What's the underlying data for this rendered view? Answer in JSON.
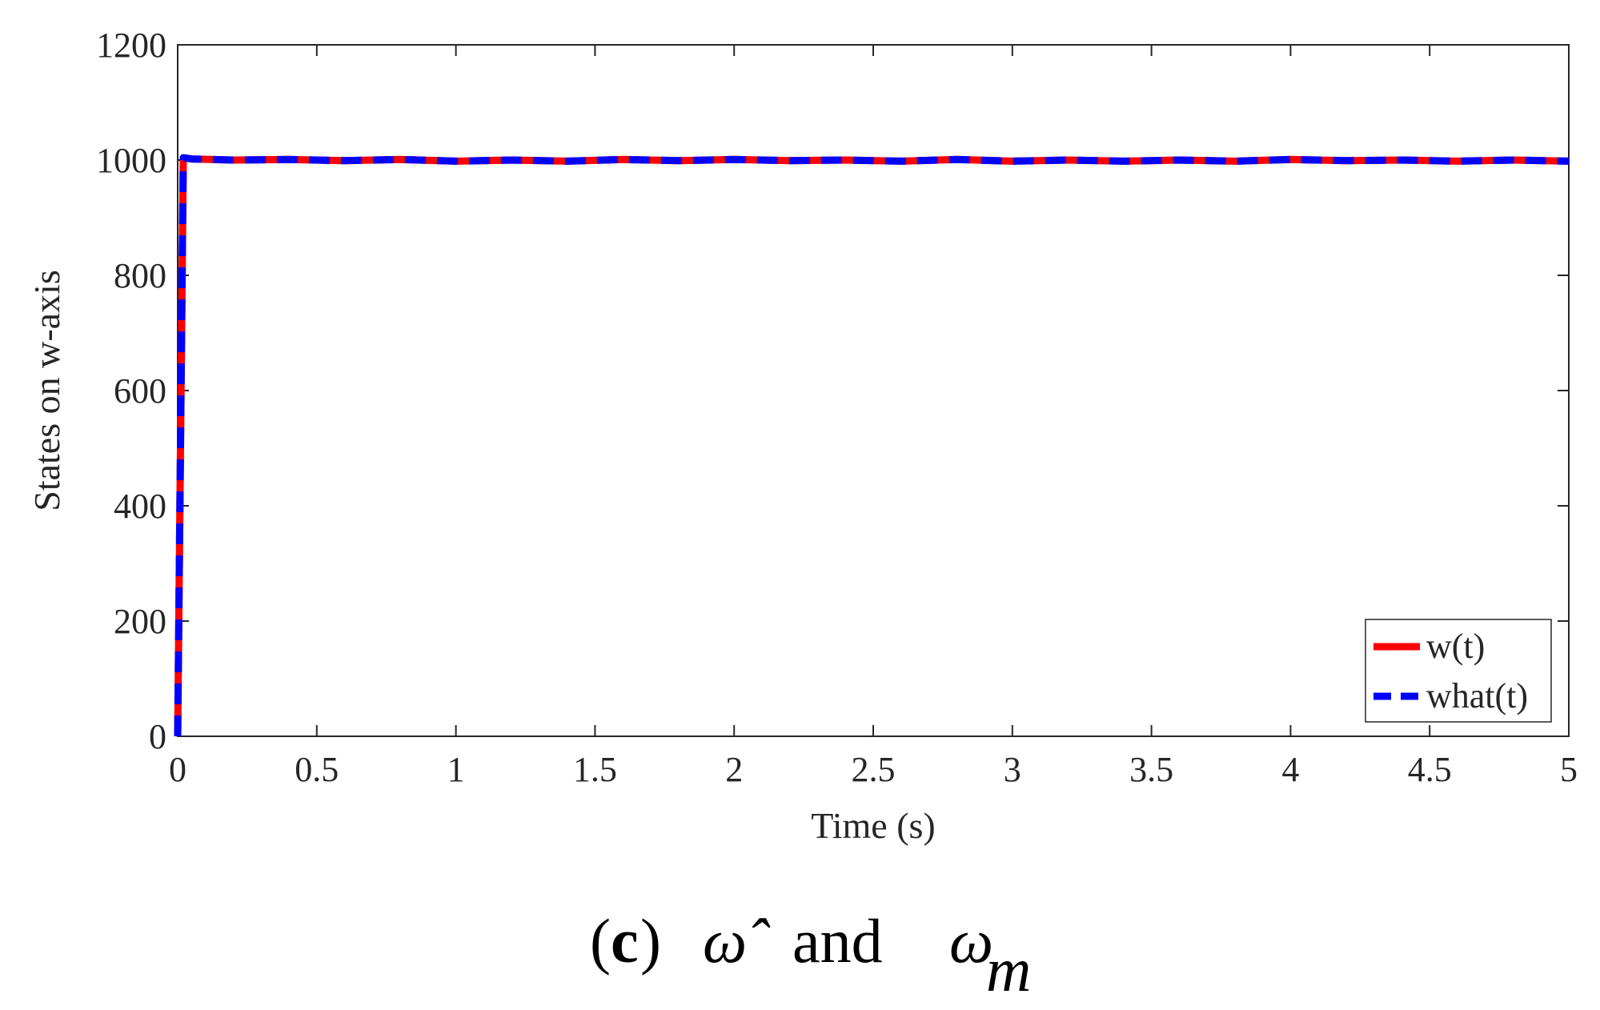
{
  "chart_data": {
    "type": "line",
    "xlabel": "Time (s)",
    "ylabel": "States on w-axis",
    "xlim": [
      0,
      5
    ],
    "ylim": [
      0,
      1200
    ],
    "xticks": [
      "0",
      "0.5",
      "1",
      "1.5",
      "2",
      "2.5",
      "3",
      "3.5",
      "4",
      "4.5",
      "5"
    ],
    "yticks": [
      "0",
      "200",
      "400",
      "600",
      "800",
      "1000",
      "1200"
    ],
    "grid": false,
    "legend_position": "bottom-right",
    "series": [
      {
        "name": "w(t)",
        "color": "#ff0000",
        "style": "solid",
        "x": [
          0,
          0.02,
          0.05,
          0.2,
          0.4,
          0.6,
          0.8,
          1.0,
          1.2,
          1.4,
          1.6,
          1.8,
          2.0,
          2.2,
          2.4,
          2.6,
          2.8,
          3.0,
          3.2,
          3.4,
          3.6,
          3.8,
          4.0,
          4.2,
          4.4,
          4.6,
          4.8,
          5.0
        ],
        "y": [
          0,
          1004,
          1002,
          1000,
          1001,
          999,
          1001,
          998,
          1000,
          998,
          1001,
          999,
          1001,
          999,
          1000,
          998,
          1001,
          998,
          1000,
          998,
          1000,
          998,
          1001,
          999,
          1000,
          998,
          1000,
          998
        ]
      },
      {
        "name": "what(t)",
        "color": "#0000ff",
        "style": "dashed",
        "x": [
          0,
          0.02,
          0.05,
          0.2,
          0.4,
          0.6,
          0.8,
          1.0,
          1.2,
          1.4,
          1.6,
          1.8,
          2.0,
          2.2,
          2.4,
          2.6,
          2.8,
          3.0,
          3.2,
          3.4,
          3.6,
          3.8,
          4.0,
          4.2,
          4.4,
          4.6,
          4.8,
          5.0
        ],
        "y": [
          0,
          1004,
          1002,
          1000,
          1001,
          999,
          1001,
          998,
          1000,
          998,
          1001,
          999,
          1001,
          999,
          1000,
          998,
          1001,
          998,
          1000,
          998,
          1000,
          998,
          1001,
          999,
          1000,
          998,
          1000,
          998
        ]
      }
    ]
  },
  "caption": {
    "open_paren": "(",
    "letter": "c",
    "close_paren": ")",
    "hat_symbol": "ω̂",
    "and_word": "and",
    "omega": "ω",
    "subscript": "m"
  }
}
